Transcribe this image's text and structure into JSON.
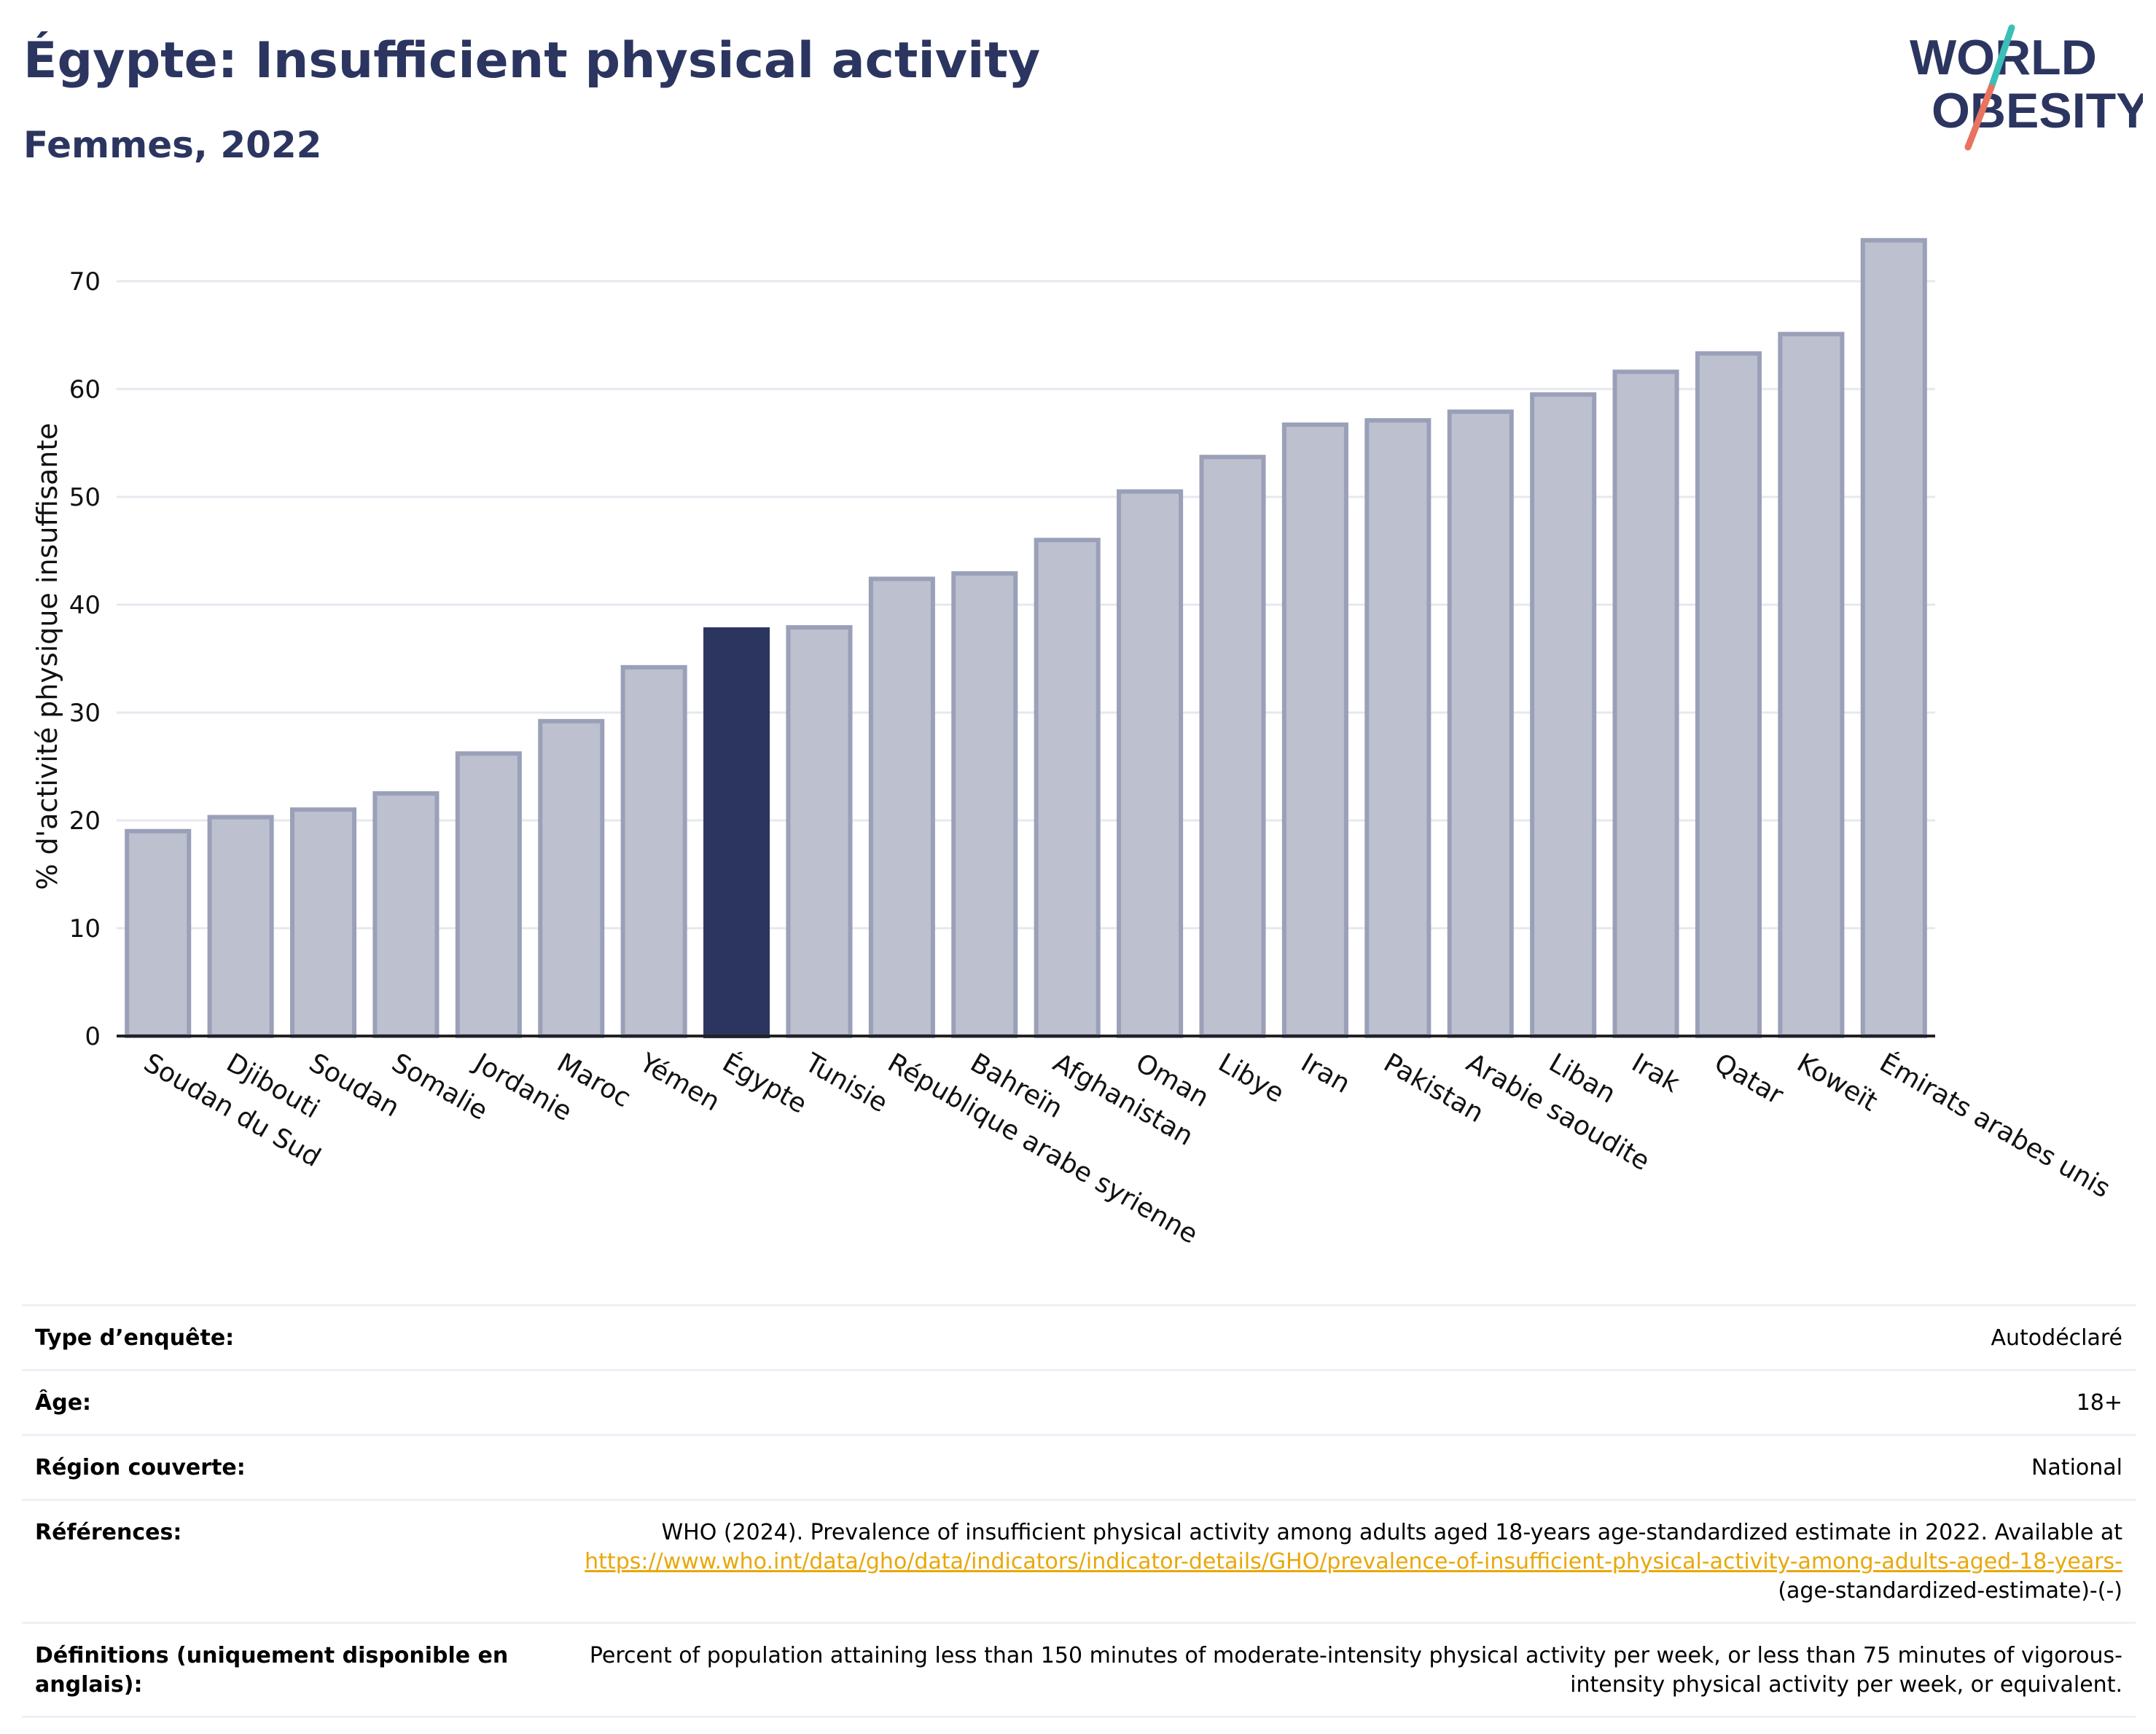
{
  "header": {
    "title": "Égypte: Insufficient physical activity",
    "subtitle": "Femmes, 2022"
  },
  "logo": {
    "line1": "WORLD",
    "line2": "OBESITY"
  },
  "colors": {
    "highlight": "#2b3560",
    "bar_fill": "#bcc0cf",
    "bar_stroke": "#9aa0b8",
    "grid": "#e6e8ef",
    "logo_text": "#2b3560",
    "logo_teal": "#3bbfb6",
    "logo_coral": "#e8735f",
    "link": "#e8a80a"
  },
  "chart_data": {
    "type": "bar",
    "ylabel": "% d'activité physique insuffisante",
    "xlabel": "",
    "ylim": [
      0,
      75
    ],
    "yticks": [
      0,
      10,
      20,
      30,
      40,
      50,
      60,
      70
    ],
    "grid": true,
    "highlight": "Égypte",
    "categories": [
      "Soudan du Sud",
      "Djibouti",
      "Soudan",
      "Somalie",
      "Jordanie",
      "Maroc",
      "Yémen",
      "Égypte",
      "Tunisie",
      "République arabe syrienne",
      "Bahreïn",
      "Afghanistan",
      "Oman",
      "Libye",
      "Iran",
      "Pakistan",
      "Arabie saoudite",
      "Liban",
      "Irak",
      "Qatar",
      "Koweït",
      "Émirats arabes unis"
    ],
    "values": [
      19.0,
      20.3,
      21.0,
      22.5,
      26.2,
      29.2,
      34.2,
      37.7,
      37.9,
      42.4,
      42.9,
      46.0,
      50.5,
      53.7,
      56.7,
      57.1,
      57.9,
      59.5,
      61.6,
      63.3,
      65.1,
      73.8
    ]
  },
  "info": {
    "survey_label": "Type d’enquête:",
    "survey_value": "Autodéclaré",
    "age_label": "Âge:",
    "age_value": "18+",
    "region_label": "Région couverte:",
    "region_value": "National",
    "refs_label": "Références:",
    "refs_text": "WHO (2024). Prevalence of insufficient physical activity among adults aged 18-years age-standardized estimate in 2022. Available at",
    "refs_link": "https://www.who.int/data/gho/data/indicators/indicator-details/GHO/prevalence-of-insufficient-physical-activity-among-adults-aged-18-years-",
    "refs_tail": "(age-standardized-estimate)-(-)",
    "defs_label": "Définitions (uniquement disponible en anglais):",
    "defs_value": "Percent of population attaining less than 150 minutes of moderate-intensity physical activity per week, or less than 75 minutes of vigorous-intensity physical activity per week, or equivalent."
  }
}
